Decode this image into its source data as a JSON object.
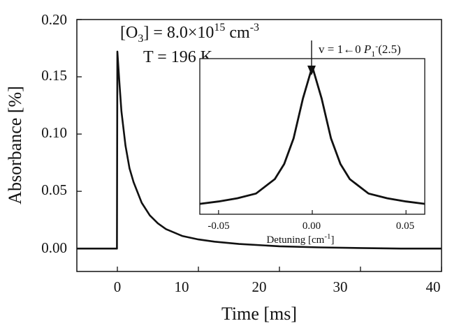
{
  "chart_data": [
    {
      "type": "line",
      "xlabel": "Time [ms]",
      "ylabel": "Absorbance [%]",
      "xlim": [
        -5,
        40
      ],
      "ylim": [
        -0.02,
        0.2
      ],
      "xticks": [
        "0",
        "10",
        "20",
        "30",
        "40"
      ],
      "yticks": [
        "0.00",
        "0.05",
        "0.10",
        "0.15",
        "0.20"
      ],
      "xtick_values": [
        0,
        10,
        20,
        30,
        40
      ],
      "ytick_values": [
        0,
        0.05,
        0.1,
        0.15,
        0.2
      ],
      "annotations": {
        "conc_prefix": "[O",
        "conc_sub": "3",
        "conc_mid": "] = 8.0×10",
        "conc_sup": "15",
        "conc_unit": " cm",
        "conc_unit_sup": "-3",
        "temperature": "T = 196 K"
      },
      "series": [
        {
          "x": [
            -5,
            -1,
            -0.05,
            0.0,
            0.25,
            0.5,
            1,
            1.5,
            2,
            3,
            4,
            5,
            6,
            8,
            10,
            12,
            15,
            20,
            25,
            30,
            35,
            40
          ],
          "y": [
            0.0,
            0.0,
            0.0,
            0.172,
            0.145,
            0.12,
            0.09,
            0.07,
            0.058,
            0.04,
            0.029,
            0.022,
            0.017,
            0.011,
            0.008,
            0.006,
            0.004,
            0.002,
            0.001,
            0.0005,
            0.0,
            0.0
          ]
        }
      ]
    },
    {
      "type": "line",
      "xlabel_prefix": "Detuning [cm",
      "xlabel_sup": "-1",
      "xlabel_suffix": "]",
      "xlim": [
        -0.06,
        0.06
      ],
      "ylim": [
        0.0495,
        0.147
      ],
      "xticks": [
        "-0.05",
        "0.00",
        "0.05"
      ],
      "xtick_values": [
        -0.05,
        0.0,
        0.05
      ],
      "annotations": {
        "transition_v": "v = 1←0  ",
        "transition_p": "P",
        "transition_sub": "1",
        "transition_sup": "-",
        "transition_end": "(2.5)"
      },
      "series": [
        {
          "x": [
            -0.06,
            -0.05,
            -0.04,
            -0.03,
            -0.02,
            -0.015,
            -0.01,
            -0.005,
            0.0,
            0.005,
            0.01,
            0.015,
            0.02,
            0.03,
            0.04,
            0.05,
            0.06
          ],
          "y": [
            0.056,
            0.0575,
            0.0595,
            0.0625,
            0.0715,
            0.081,
            0.097,
            0.122,
            0.142,
            0.122,
            0.097,
            0.081,
            0.0715,
            0.0625,
            0.0595,
            0.0575,
            0.056
          ]
        }
      ]
    }
  ]
}
